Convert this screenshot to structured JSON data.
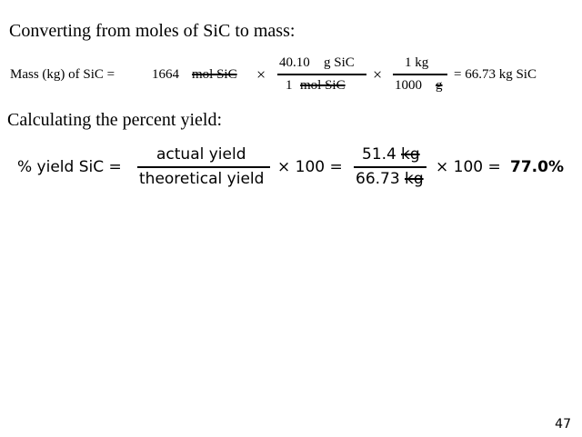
{
  "headings": {
    "converting": "Converting from moles of SiC to mass:",
    "percent_yield": "Calculating the percent yield:"
  },
  "equation1": {
    "lhs": "Mass (kg) of SiC =",
    "moles_value": "1664",
    "moles_unit": "mol SiC",
    "times": "×",
    "frac1_num_value": "40.10",
    "frac1_num_unit": "g SiC",
    "frac1_den_value": "1",
    "frac1_den_unit": "mol SiC",
    "frac2_num": "1 kg",
    "frac2_den_value": "1000",
    "frac2_den_unit": "g",
    "result": "= 66.73 kg SiC"
  },
  "equation2": {
    "lhs": "% yield SiC =",
    "frac1_num": "actual yield",
    "frac1_den": "theoretical yield",
    "times100_a": "× 100 =",
    "frac2_num_value": "51.4",
    "frac2_num_unit": "kg",
    "frac2_den_value": "66.73",
    "frac2_den_unit": "kg",
    "times100_b": "× 100 =",
    "result": "77.0%"
  },
  "page_number": "47"
}
